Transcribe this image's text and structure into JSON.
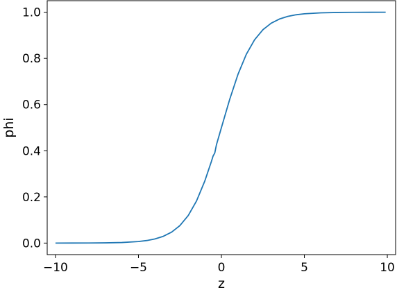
{
  "chart_data": {
    "type": "line",
    "title": "",
    "xlabel": "z",
    "ylabel": "phi",
    "xlim": [
      -10.5,
      10.5
    ],
    "ylim": [
      -0.05,
      1.05
    ],
    "xticks": [
      -10,
      -5,
      0,
      5,
      10
    ],
    "xtick_labels": [
      "−10",
      "−5",
      "0",
      "5",
      "10"
    ],
    "yticks": [
      0.0,
      0.2,
      0.4,
      0.6,
      0.8,
      1.0
    ],
    "ytick_labels": [
      "0.0",
      "0.2",
      "0.4",
      "0.6",
      "0.8",
      "1.0"
    ],
    "grid": false,
    "legend": "none",
    "series": [
      {
        "color": "#1f77b4",
        "x": [
          -10,
          -9,
          -8,
          -7,
          -6,
          -5,
          -4.5,
          -4,
          -3.5,
          -3,
          -2.5,
          -2,
          -1.5,
          -1,
          -0.6,
          -0.5,
          -0.4,
          -0.3,
          0,
          0.5,
          1,
          1.5,
          2,
          2.5,
          3,
          3.5,
          4,
          4.5,
          5,
          6,
          7,
          8,
          9,
          9.9
        ],
        "y": [
          4.54e-05,
          0.000123,
          0.000335,
          0.000911,
          0.00247,
          0.00669,
          0.011,
          0.018,
          0.0293,
          0.0474,
          0.0759,
          0.1192,
          0.1824,
          0.2689,
          0.3543,
          0.3775,
          0.3901,
          0.4256,
          0.5,
          0.6225,
          0.7311,
          0.8176,
          0.8808,
          0.9241,
          0.9526,
          0.9707,
          0.982,
          0.989,
          0.9933,
          0.9975,
          0.9991,
          0.99966,
          0.99988,
          0.99995
        ]
      }
    ]
  }
}
